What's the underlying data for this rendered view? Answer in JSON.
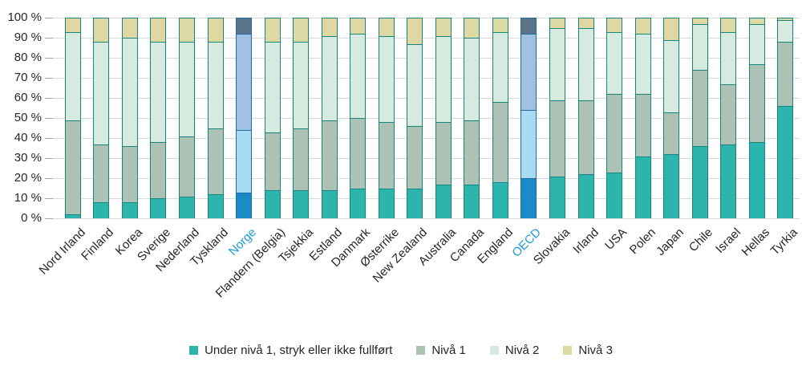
{
  "chart_data": {
    "type": "bar",
    "stacked": true,
    "percent": true,
    "title": "",
    "xlabel": "",
    "ylabel": "",
    "ylim": [
      0,
      100
    ],
    "ytick_step": 10,
    "yticks": [
      "0 %",
      "10 %",
      "20 %",
      "30 %",
      "40 %",
      "50 %",
      "60 %",
      "70 %",
      "80 %",
      "90 %",
      "100 %"
    ],
    "grid": true,
    "legend_position": "bottom",
    "categories": [
      "Nord Irland",
      "Finland",
      "Korea",
      "Sverige",
      "Nederland",
      "Tyskland",
      "Norge",
      "Flandern (Belgia)",
      "Tsjekkia",
      "Estland",
      "Danmark",
      "Østerrike",
      "New Zealand",
      "Australia",
      "Canada",
      "England",
      "OECD",
      "Slovakia",
      "Irland",
      "USA",
      "Polen",
      "Japan",
      "Chile",
      "Israel",
      "Hellas",
      "Tyrkia"
    ],
    "highlighted_categories": [
      "Norge",
      "OECD"
    ],
    "series": [
      {
        "name": "Under nivå 1, stryk eller ikke fullført",
        "color": "#2db4ac",
        "highlight_color": "#1b8ac6",
        "values": [
          2,
          8,
          8,
          10,
          11,
          12,
          13,
          14,
          14,
          14,
          15,
          15,
          15,
          17,
          17,
          18,
          20,
          21,
          22,
          23,
          31,
          32,
          36,
          37,
          38,
          56
        ]
      },
      {
        "name": "Nivå 1",
        "color": "#abc2b4",
        "highlight_color": "#a9daf3",
        "values": [
          47,
          29,
          28,
          28,
          30,
          33,
          31,
          29,
          31,
          35,
          35,
          33,
          31,
          31,
          32,
          40,
          34,
          38,
          37,
          39,
          31,
          21,
          38,
          30,
          39,
          32
        ]
      },
      {
        "name": "Nivå 2",
        "color": "#d6eae0",
        "highlight_color": "#a2c0e1",
        "values": [
          44,
          51,
          54,
          50,
          47,
          43,
          48,
          45,
          43,
          42,
          42,
          43,
          41,
          43,
          41,
          35,
          38,
          36,
          36,
          31,
          30,
          36,
          23,
          26,
          20,
          11
        ]
      },
      {
        "name": "Nivå 3",
        "color": "#ded9a2",
        "highlight_color": "#5a7386",
        "values": [
          7,
          12,
          10,
          12,
          12,
          12,
          8,
          12,
          12,
          9,
          8,
          9,
          13,
          9,
          10,
          7,
          8,
          5,
          5,
          7,
          8,
          11,
          3,
          7,
          3,
          1
        ]
      }
    ],
    "colors": {
      "bar_border": "#17857d",
      "highlight_bar_border": "#1a6fa0",
      "highlight_label": "#199ad6",
      "gridline": "#d9d9d9",
      "tick": "#a6a6a6",
      "text": "#262626"
    }
  }
}
